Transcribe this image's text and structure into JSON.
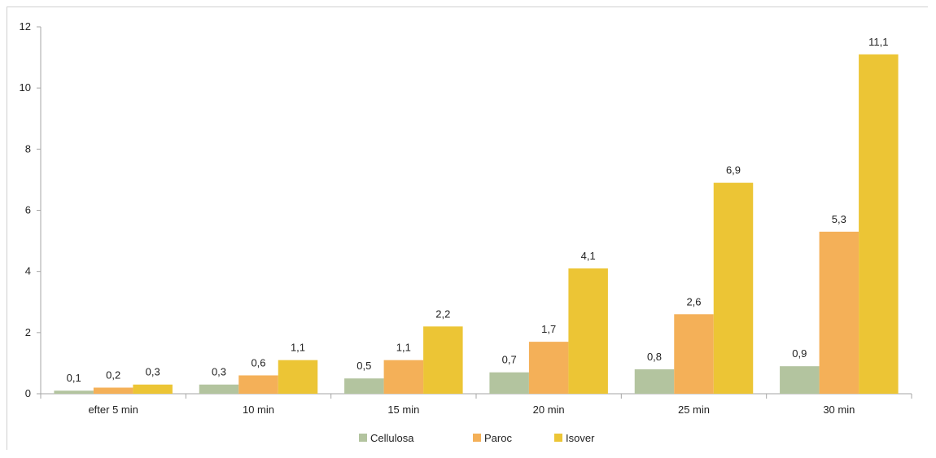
{
  "chart_data": {
    "type": "bar",
    "title": "",
    "xlabel": "",
    "ylabel": "",
    "categories": [
      "efter 5 min",
      "10 min",
      "15 min",
      "20 min",
      "25 min",
      "30 min"
    ],
    "series": [
      {
        "name": "Cellulosa",
        "color": "#b3c49f",
        "values": [
          0.1,
          0.3,
          0.5,
          0.7,
          0.8,
          0.9
        ],
        "labels": [
          "0,1",
          "0,3",
          "0,5",
          "0,7",
          "0,8",
          "0,9"
        ]
      },
      {
        "name": "Paroc",
        "color": "#f4b058",
        "values": [
          0.2,
          0.6,
          1.1,
          1.7,
          2.6,
          5.3
        ],
        "labels": [
          "0,2",
          "0,6",
          "1,1",
          "1,7",
          "2,6",
          "5,3"
        ]
      },
      {
        "name": "Isover",
        "color": "#ecc535",
        "values": [
          0.3,
          1.1,
          2.2,
          4.1,
          6.9,
          11.1
        ],
        "labels": [
          "0,3",
          "1,1",
          "2,2",
          "4,1",
          "6,9",
          "11,1"
        ]
      }
    ],
    "ylim": [
      0,
      12
    ],
    "yticks": [
      "0",
      "2",
      "4",
      "6",
      "8",
      "10",
      "12"
    ],
    "grid": false,
    "legend_position": "bottom"
  }
}
